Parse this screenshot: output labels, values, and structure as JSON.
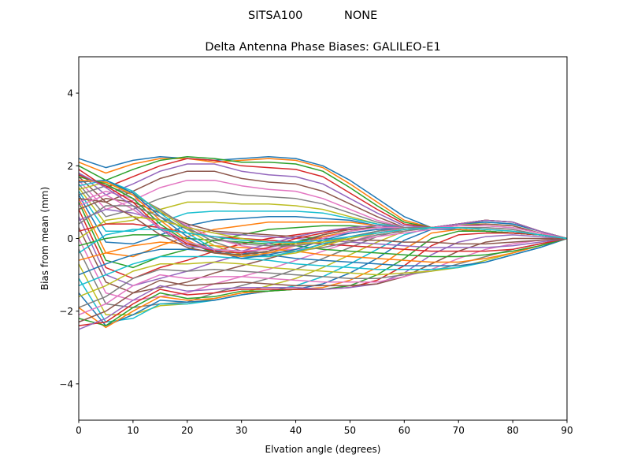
{
  "figure": {
    "suptitle_left": "SITSA100",
    "suptitle_right": "NONE"
  },
  "chart_data": {
    "type": "line",
    "title": "Delta Antenna Phase Biases: GALILEO-E1",
    "xlabel": "Elvation angle (degrees)",
    "ylabel": "Bias from mean (mm)",
    "xlim": [
      0,
      90
    ],
    "ylim": [
      -5,
      5
    ],
    "xticks": [
      0,
      10,
      20,
      30,
      40,
      50,
      60,
      70,
      80,
      90
    ],
    "yticks": [
      -4,
      -2,
      0,
      2,
      4
    ],
    "ytick_labels": [
      "−4",
      "−2",
      "0",
      "2",
      "4"
    ],
    "grid": false,
    "legend": "none",
    "x": [
      0,
      5,
      10,
      15,
      20,
      25,
      30,
      35,
      40,
      45,
      50,
      55,
      60,
      65,
      70,
      75,
      80,
      85,
      90
    ],
    "colors": [
      "#1f77b4",
      "#ff7f0e",
      "#2ca02c",
      "#d62728",
      "#9467bd",
      "#8c564b",
      "#e377c2",
      "#7f7f7f",
      "#bcbd22",
      "#17becf"
    ],
    "series": [
      {
        "values": [
          2.2,
          1.95,
          2.15,
          2.25,
          2.2,
          2.15,
          2.2,
          2.25,
          2.2,
          2.0,
          1.6,
          1.1,
          0.6,
          0.3,
          0.25,
          0.2,
          0.15,
          0.1,
          0.0
        ]
      },
      {
        "values": [
          2.1,
          1.8,
          2.05,
          2.2,
          2.2,
          2.1,
          2.15,
          2.2,
          2.15,
          1.95,
          1.5,
          1.0,
          0.5,
          0.3,
          0.25,
          0.2,
          0.15,
          0.1,
          0.0
        ]
      },
      {
        "values": [
          2.0,
          1.6,
          1.9,
          2.15,
          2.25,
          2.2,
          2.1,
          2.1,
          2.05,
          1.85,
          1.4,
          0.9,
          0.45,
          0.3,
          0.25,
          0.2,
          0.15,
          0.1,
          0.0
        ]
      },
      {
        "values": [
          1.9,
          1.4,
          1.7,
          2.0,
          2.2,
          2.15,
          2.0,
          1.95,
          1.9,
          1.7,
          1.25,
          0.8,
          0.4,
          0.3,
          0.25,
          0.2,
          0.15,
          0.1,
          0.0
        ]
      },
      {
        "values": [
          1.8,
          1.2,
          1.5,
          1.85,
          2.05,
          2.05,
          1.85,
          1.75,
          1.7,
          1.5,
          1.1,
          0.7,
          0.35,
          0.3,
          0.25,
          0.2,
          0.15,
          0.1,
          0.0
        ]
      },
      {
        "values": [
          1.7,
          1.0,
          1.3,
          1.65,
          1.85,
          1.85,
          1.65,
          1.55,
          1.5,
          1.3,
          0.95,
          0.6,
          0.3,
          0.3,
          0.25,
          0.2,
          0.15,
          0.1,
          0.0
        ]
      },
      {
        "values": [
          1.6,
          0.8,
          1.05,
          1.4,
          1.6,
          1.6,
          1.45,
          1.35,
          1.3,
          1.1,
          0.8,
          0.5,
          0.3,
          0.3,
          0.25,
          0.2,
          0.15,
          0.1,
          0.0
        ]
      },
      {
        "values": [
          1.5,
          0.6,
          0.8,
          1.1,
          1.3,
          1.3,
          1.2,
          1.15,
          1.1,
          0.95,
          0.7,
          0.45,
          0.3,
          0.3,
          0.25,
          0.2,
          0.15,
          0.1,
          0.0
        ]
      },
      {
        "values": [
          1.4,
          0.4,
          0.5,
          0.8,
          1.0,
          1.0,
          0.95,
          0.95,
          0.9,
          0.8,
          0.6,
          0.4,
          0.3,
          0.3,
          0.25,
          0.2,
          0.15,
          0.1,
          0.0
        ]
      },
      {
        "values": [
          1.3,
          0.2,
          0.2,
          0.45,
          0.7,
          0.75,
          0.75,
          0.75,
          0.75,
          0.7,
          0.55,
          0.4,
          0.3,
          0.3,
          0.25,
          0.2,
          0.15,
          0.1,
          0.0
        ]
      },
      {
        "values": [
          1.2,
          -0.1,
          -0.15,
          0.1,
          0.35,
          0.5,
          0.55,
          0.6,
          0.6,
          0.55,
          0.5,
          0.35,
          0.3,
          0.3,
          0.25,
          0.2,
          0.15,
          0.1,
          0.0
        ]
      },
      {
        "values": [
          1.1,
          -0.4,
          -0.5,
          -0.2,
          0.05,
          0.25,
          0.35,
          0.45,
          0.45,
          0.45,
          0.45,
          0.35,
          0.3,
          0.3,
          0.25,
          0.2,
          0.15,
          0.1,
          0.0
        ]
      },
      {
        "values": [
          1.0,
          -0.6,
          -0.8,
          -0.5,
          -0.3,
          -0.05,
          0.1,
          0.25,
          0.3,
          0.35,
          0.35,
          0.3,
          0.3,
          0.3,
          0.25,
          0.2,
          0.15,
          0.1,
          0.0
        ]
      },
      {
        "values": [
          0.8,
          -0.8,
          -1.1,
          -0.8,
          -0.6,
          -0.35,
          -0.15,
          0.0,
          0.1,
          0.2,
          0.25,
          0.3,
          0.3,
          0.3,
          0.25,
          0.2,
          0.15,
          0.1,
          0.0
        ]
      },
      {
        "values": [
          0.6,
          -1.0,
          -1.3,
          -1.1,
          -0.9,
          -0.65,
          -0.45,
          -0.25,
          -0.1,
          0.05,
          0.15,
          0.25,
          0.3,
          0.3,
          0.25,
          0.2,
          0.15,
          0.1,
          0.0
        ]
      },
      {
        "values": [
          0.3,
          -1.2,
          -1.5,
          -1.35,
          -1.2,
          -0.95,
          -0.75,
          -0.55,
          -0.35,
          -0.15,
          0.0,
          0.2,
          0.3,
          0.3,
          0.25,
          0.2,
          0.15,
          0.1,
          0.0
        ]
      },
      {
        "values": [
          0.0,
          -1.5,
          -1.7,
          -1.6,
          -1.5,
          -1.25,
          -1.05,
          -0.85,
          -0.6,
          -0.35,
          -0.1,
          0.15,
          0.3,
          0.3,
          0.25,
          0.2,
          0.15,
          0.1,
          0.0
        ]
      },
      {
        "values": [
          -0.3,
          -1.8,
          -1.9,
          -1.8,
          -1.75,
          -1.5,
          -1.3,
          -1.1,
          -0.85,
          -0.55,
          -0.25,
          0.05,
          0.25,
          0.3,
          0.25,
          0.2,
          0.15,
          0.1,
          0.0
        ]
      },
      {
        "values": [
          -0.7,
          -2.1,
          -2.1,
          -1.85,
          -1.8,
          -1.65,
          -1.5,
          -1.3,
          -1.1,
          -0.8,
          -0.45,
          -0.1,
          0.2,
          0.3,
          0.25,
          0.2,
          0.15,
          0.1,
          0.0
        ]
      },
      {
        "values": [
          -1.1,
          -2.3,
          -2.2,
          -1.8,
          -1.8,
          -1.7,
          -1.55,
          -1.45,
          -1.3,
          -1.05,
          -0.7,
          -0.3,
          0.1,
          0.3,
          0.25,
          0.2,
          0.15,
          0.1,
          0.0
        ]
      },
      {
        "values": [
          -1.5,
          -2.4,
          -2.1,
          -1.7,
          -1.75,
          -1.7,
          -1.55,
          -1.45,
          -1.4,
          -1.25,
          -0.95,
          -0.55,
          -0.05,
          0.25,
          0.25,
          0.2,
          0.15,
          0.1,
          0.0
        ]
      },
      {
        "values": [
          -1.9,
          -2.45,
          -2.0,
          -1.6,
          -1.7,
          -1.65,
          -1.5,
          -1.45,
          -1.4,
          -1.35,
          -1.15,
          -0.8,
          -0.3,
          0.15,
          0.25,
          0.2,
          0.15,
          0.1,
          0.0
        ]
      },
      {
        "values": [
          -2.2,
          -2.4,
          -1.9,
          -1.5,
          -1.65,
          -1.6,
          -1.45,
          -1.45,
          -1.4,
          -1.4,
          -1.3,
          -1.0,
          -0.55,
          0.0,
          0.2,
          0.2,
          0.15,
          0.1,
          0.0
        ]
      },
      {
        "values": [
          -2.4,
          -2.3,
          -1.8,
          -1.4,
          -1.55,
          -1.5,
          -1.4,
          -1.4,
          -1.4,
          -1.4,
          -1.35,
          -1.15,
          -0.75,
          -0.2,
          0.1,
          0.15,
          0.15,
          0.1,
          0.0
        ]
      },
      {
        "values": [
          -2.5,
          -2.2,
          -1.7,
          -1.3,
          -1.45,
          -1.4,
          -1.35,
          -1.35,
          -1.35,
          -1.4,
          -1.35,
          -1.25,
          -0.95,
          -0.45,
          -0.1,
          0.05,
          0.1,
          0.05,
          0.0
        ]
      },
      {
        "values": [
          -2.3,
          -2.0,
          -1.5,
          -1.15,
          -1.3,
          -1.25,
          -1.2,
          -1.25,
          -1.3,
          -1.3,
          -1.3,
          -1.25,
          -1.05,
          -0.7,
          -0.35,
          -0.1,
          0.0,
          0.0,
          0.0
        ]
      },
      {
        "values": [
          -2.1,
          -1.8,
          -1.3,
          -1.0,
          -1.1,
          -1.05,
          -1.05,
          -1.1,
          -1.15,
          -1.2,
          -1.2,
          -1.2,
          -1.05,
          -0.85,
          -0.55,
          -0.3,
          -0.15,
          -0.05,
          0.0
        ]
      },
      {
        "values": [
          -1.9,
          -1.6,
          -1.1,
          -0.85,
          -0.9,
          -0.85,
          -0.9,
          -0.95,
          -1.0,
          -1.05,
          -1.1,
          -1.1,
          -1.0,
          -0.9,
          -0.7,
          -0.5,
          -0.3,
          -0.15,
          0.0
        ]
      },
      {
        "values": [
          -1.6,
          -1.3,
          -0.9,
          -0.7,
          -0.7,
          -0.65,
          -0.7,
          -0.8,
          -0.85,
          -0.9,
          -0.95,
          -1.0,
          -0.95,
          -0.9,
          -0.8,
          -0.6,
          -0.4,
          -0.2,
          0.0
        ]
      },
      {
        "values": [
          -1.3,
          -1.0,
          -0.7,
          -0.5,
          -0.5,
          -0.5,
          -0.55,
          -0.6,
          -0.7,
          -0.75,
          -0.8,
          -0.85,
          -0.85,
          -0.85,
          -0.8,
          -0.65,
          -0.45,
          -0.25,
          0.0
        ]
      },
      {
        "values": [
          -1.0,
          -0.7,
          -0.45,
          -0.3,
          -0.3,
          -0.35,
          -0.4,
          -0.45,
          -0.55,
          -0.6,
          -0.65,
          -0.7,
          -0.75,
          -0.75,
          -0.75,
          -0.65,
          -0.45,
          -0.25,
          0.0
        ]
      },
      {
        "values": [
          -0.6,
          -0.4,
          -0.2,
          -0.1,
          -0.15,
          -0.2,
          -0.25,
          -0.3,
          -0.35,
          -0.45,
          -0.5,
          -0.55,
          -0.6,
          -0.65,
          -0.65,
          -0.55,
          -0.4,
          -0.2,
          0.0
        ]
      },
      {
        "values": [
          -0.2,
          0.0,
          0.1,
          0.1,
          0.0,
          -0.05,
          -0.1,
          -0.15,
          -0.2,
          -0.3,
          -0.35,
          -0.4,
          -0.45,
          -0.5,
          -0.5,
          -0.45,
          -0.35,
          -0.2,
          0.0
        ]
      },
      {
        "values": [
          0.2,
          0.4,
          0.4,
          0.3,
          0.15,
          0.05,
          0.0,
          -0.05,
          -0.1,
          -0.15,
          -0.2,
          -0.25,
          -0.3,
          -0.35,
          -0.35,
          -0.35,
          -0.3,
          -0.15,
          0.0
        ]
      },
      {
        "values": [
          0.5,
          0.8,
          0.7,
          0.5,
          0.3,
          0.15,
          0.1,
          0.05,
          0.0,
          -0.05,
          -0.1,
          -0.15,
          -0.2,
          -0.25,
          -0.25,
          -0.25,
          -0.2,
          -0.1,
          0.0
        ]
      },
      {
        "values": [
          0.8,
          1.1,
          1.0,
          0.7,
          0.4,
          0.2,
          0.15,
          0.1,
          0.05,
          0.0,
          -0.05,
          -0.05,
          -0.1,
          -0.1,
          -0.15,
          -0.15,
          -0.1,
          -0.05,
          0.0
        ]
      },
      {
        "values": [
          1.0,
          1.3,
          1.1,
          0.75,
          0.35,
          0.0,
          -0.2,
          -0.3,
          -0.3,
          -0.25,
          -0.1,
          0.05,
          0.15,
          0.25,
          0.3,
          0.3,
          0.25,
          0.1,
          0.0
        ]
      },
      {
        "values": [
          1.2,
          1.45,
          1.2,
          0.8,
          0.3,
          -0.1,
          -0.35,
          -0.4,
          -0.35,
          -0.25,
          -0.1,
          0.1,
          0.2,
          0.3,
          0.35,
          0.35,
          0.3,
          0.15,
          0.0
        ]
      },
      {
        "values": [
          1.35,
          1.55,
          1.25,
          0.75,
          0.25,
          -0.2,
          -0.45,
          -0.5,
          -0.4,
          -0.2,
          0.0,
          0.15,
          0.25,
          0.3,
          0.4,
          0.4,
          0.35,
          0.15,
          0.0
        ]
      },
      {
        "values": [
          1.45,
          1.6,
          1.3,
          0.7,
          0.15,
          -0.3,
          -0.5,
          -0.5,
          -0.35,
          -0.15,
          0.05,
          0.2,
          0.3,
          0.3,
          0.4,
          0.45,
          0.4,
          0.2,
          0.0
        ]
      },
      {
        "values": [
          1.55,
          1.6,
          1.25,
          0.6,
          0.05,
          -0.35,
          -0.55,
          -0.45,
          -0.3,
          -0.05,
          0.15,
          0.25,
          0.3,
          0.3,
          0.4,
          0.45,
          0.4,
          0.2,
          0.0
        ]
      },
      {
        "values": [
          1.6,
          1.55,
          1.2,
          0.5,
          -0.05,
          -0.4,
          -0.5,
          -0.4,
          -0.2,
          0.05,
          0.2,
          0.3,
          0.3,
          0.3,
          0.4,
          0.5,
          0.45,
          0.2,
          0.0
        ]
      },
      {
        "values": [
          1.7,
          1.5,
          1.1,
          0.4,
          -0.1,
          -0.4,
          -0.45,
          -0.35,
          -0.1,
          0.1,
          0.25,
          0.3,
          0.3,
          0.3,
          0.4,
          0.5,
          0.45,
          0.2,
          0.0
        ]
      },
      {
        "values": [
          1.75,
          1.45,
          1.0,
          0.3,
          -0.15,
          -0.35,
          -0.4,
          -0.25,
          0.0,
          0.15,
          0.3,
          0.35,
          0.3,
          0.3,
          0.4,
          0.5,
          0.45,
          0.2,
          0.0
        ]
      },
      {
        "values": [
          1.8,
          1.4,
          0.9,
          0.25,
          -0.2,
          -0.3,
          -0.35,
          -0.15,
          0.05,
          0.2,
          0.3,
          0.35,
          0.3,
          0.3,
          0.4,
          0.5,
          0.45,
          0.2,
          0.0
        ]
      },
      {
        "values": [
          1.1,
          1.0,
          0.6,
          0.1,
          -0.25,
          -0.4,
          -0.45,
          -0.35,
          -0.15,
          0.1,
          0.25,
          0.3,
          0.3,
          0.3,
          0.35,
          0.4,
          0.35,
          0.15,
          0.0
        ]
      },
      {
        "values": [
          0.9,
          1.2,
          0.8,
          0.3,
          -0.1,
          -0.3,
          -0.35,
          -0.3,
          -0.2,
          0.0,
          0.2,
          0.3,
          0.3,
          0.3,
          0.35,
          0.35,
          0.3,
          0.15,
          0.0
        ]
      },
      {
        "values": [
          0.4,
          0.9,
          0.9,
          0.6,
          0.25,
          0.0,
          -0.15,
          -0.2,
          -0.2,
          -0.1,
          0.05,
          0.2,
          0.3,
          0.3,
          0.3,
          0.3,
          0.25,
          0.1,
          0.0
        ]
      },
      {
        "values": [
          0.0,
          0.5,
          0.6,
          0.5,
          0.3,
          0.15,
          0.0,
          -0.1,
          -0.15,
          -0.1,
          0.0,
          0.15,
          0.25,
          0.3,
          0.3,
          0.25,
          0.2,
          0.1,
          0.0
        ]
      },
      {
        "values": [
          -0.4,
          0.1,
          0.25,
          0.25,
          0.15,
          0.05,
          -0.05,
          -0.1,
          -0.1,
          -0.05,
          0.05,
          0.15,
          0.25,
          0.3,
          0.3,
          0.25,
          0.2,
          0.1,
          0.0
        ]
      }
    ]
  }
}
